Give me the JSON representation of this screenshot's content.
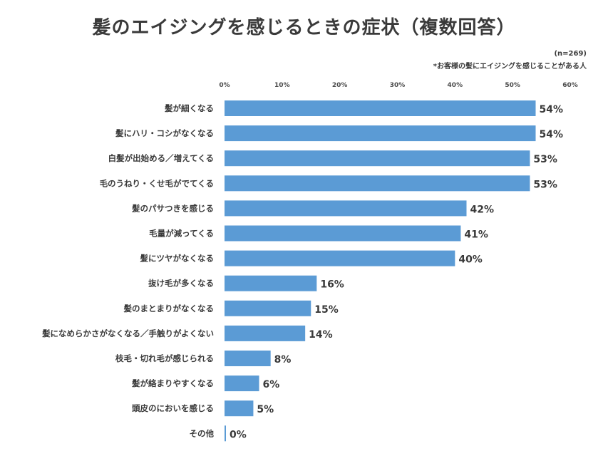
{
  "chart_data": {
    "type": "bar",
    "orientation": "horizontal",
    "title": "髪のエイジングを感じるときの症状（複数回答）",
    "sample_note": "(n=269)",
    "subnote": "*お客様の髪にエイジングを感じることがある人",
    "categories": [
      "髪が細くなる",
      "髪にハリ・コシがなくなる",
      "白髪が出始める／増えてくる",
      "毛のうねり・くせ毛がでてくる",
      "髪のパサつきを感じる",
      "毛量が減ってくる",
      "髪にツヤがなくなる",
      "抜け毛が多くなる",
      "髪のまとまりがなくなる",
      "髪になめらかさがなくなる／手触りがよくない",
      "枝毛・切れ毛が感じられる",
      "髪が絡まりやすくなる",
      "頭皮のにおいを感じる",
      "その他"
    ],
    "values": [
      54,
      54,
      53,
      53,
      42,
      41,
      40,
      16,
      15,
      14,
      8,
      6,
      5,
      0
    ],
    "value_labels": [
      "54%",
      "54%",
      "53%",
      "53%",
      "42%",
      "41%",
      "40%",
      "16%",
      "15%",
      "14%",
      "8%",
      "6%",
      "5%",
      "0%"
    ],
    "xlim": [
      0,
      60
    ],
    "xticks": [
      "0%",
      "10%",
      "20%",
      "30%",
      "40%",
      "50%",
      "60%"
    ],
    "grid": false,
    "bar_color": "#5b9bd5"
  }
}
